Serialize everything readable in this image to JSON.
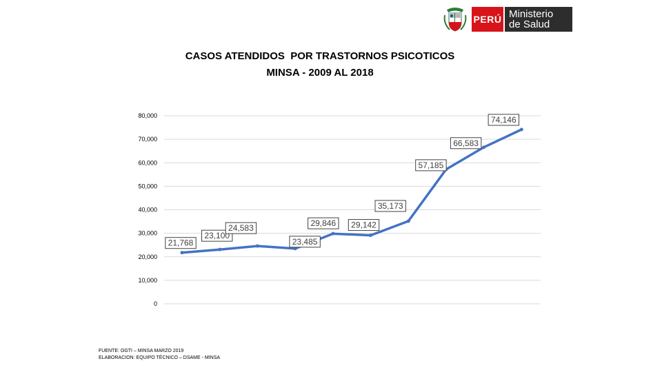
{
  "logo": {
    "country": "PERÚ",
    "ministry_line1": "Ministerio",
    "ministry_line2": "de Salud",
    "colors": {
      "red": "#d7141a",
      "dark": "#2d2d2d"
    }
  },
  "chart_data": {
    "type": "line",
    "title": "CASOS ATENDIDOS  POR TRASTORNOS PSICOTICOS",
    "subtitle": "MINSA - 2009 AL 2018",
    "xlabel": "",
    "ylabel": "",
    "ylim": [
      0,
      80000
    ],
    "yticks": [
      0,
      10000,
      20000,
      30000,
      40000,
      50000,
      60000,
      70000,
      80000
    ],
    "ytick_labels": [
      "0",
      "10,000",
      "20,000",
      "30,000",
      "40,000",
      "50,000",
      "60,000",
      "70,000",
      "80,000"
    ],
    "grid": true,
    "line_color": "#4472c4",
    "series": [
      {
        "name": "Casos",
        "values": [
          21768,
          23100,
          24583,
          23485,
          29846,
          29142,
          35173,
          57185,
          66583,
          74146
        ],
        "labels": [
          "21,768",
          "23,100",
          "24,583",
          "23,485",
          "29,846",
          "29,142",
          "35,173",
          "57,185",
          "66,583",
          "74,146"
        ]
      }
    ]
  },
  "footer": {
    "source": "FUENTE: OGTI – MINSA MARZO 2019",
    "elaboration": "ELABORACION: EQUIPO TÉCNICO – DSAME - MINSA"
  }
}
